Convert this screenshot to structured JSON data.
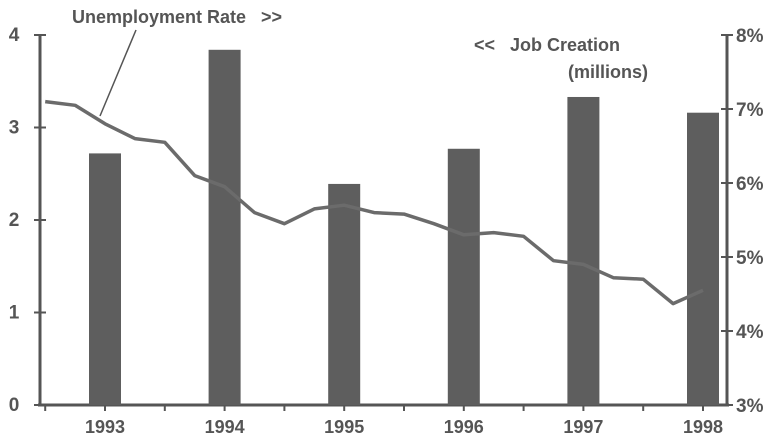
{
  "chart_data": {
    "type": "bar",
    "categories": [
      "1993",
      "1994",
      "1995",
      "1996",
      "1997",
      "1998"
    ],
    "bar_values": [
      2.72,
      3.84,
      2.39,
      2.77,
      3.33,
      3.16
    ],
    "left_ylim": [
      0,
      4
    ],
    "left_ticks": [
      "0",
      "1",
      "2",
      "3",
      "4"
    ],
    "right_ylim": [
      3,
      8
    ],
    "right_ticks": [
      "3%",
      "4%",
      "5%",
      "6%",
      "7%",
      "8%"
    ],
    "line_x": [
      1992.5,
      1992.75,
      1993.0,
      1993.25,
      1993.5,
      1993.75,
      1994.0,
      1994.25,
      1994.5,
      1994.75,
      1995.0,
      1995.25,
      1995.5,
      1995.75,
      1996.0,
      1996.25,
      1996.5,
      1996.75,
      1997.0,
      1997.25,
      1997.5,
      1997.75,
      1998.0
    ],
    "line_values": [
      7.1,
      7.05,
      6.8,
      6.6,
      6.55,
      6.1,
      5.95,
      5.6,
      5.45,
      5.65,
      5.7,
      5.6,
      5.58,
      5.45,
      5.3,
      5.33,
      5.28,
      4.95,
      4.9,
      4.72,
      4.7,
      4.37,
      4.55
    ],
    "line_label": "Unemployment Rate   >>",
    "bar_label_1": "<<   Job Creation",
    "bar_label_2": "(millions)",
    "grid": false,
    "colors": {
      "bar": "#5e5e5e",
      "line": "#6b6b6b",
      "axis": "#555555"
    }
  }
}
